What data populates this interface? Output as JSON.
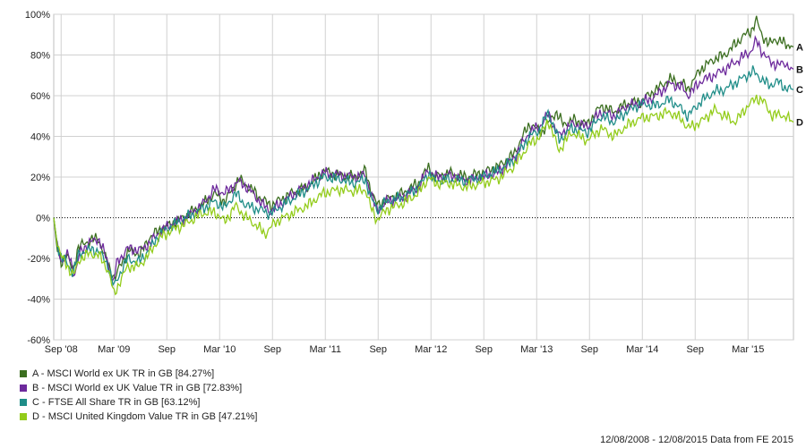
{
  "chart_data": {
    "type": "line",
    "x_ticks": [
      "Sep '08",
      "Mar '09",
      "Sep",
      "Mar '10",
      "Sep",
      "Mar '11",
      "Sep",
      "Mar '12",
      "Sep",
      "Mar '13",
      "Sep",
      "Mar '14",
      "Sep",
      "Mar '15"
    ],
    "y_ticks": [
      "100%",
      "80%",
      "60%",
      "40%",
      "20%",
      "0%",
      "-20%",
      "-40%",
      "-60%"
    ],
    "ylim": [
      -60,
      100
    ],
    "x_range": [
      "2008-08-12",
      "2015-08-12"
    ],
    "grid": true,
    "series": [
      {
        "name": "A - MSCI World ex UK TR in GB [84.27%]",
        "end_label": "A",
        "color": "#3b6e1f",
        "points": [
          [
            0,
            0
          ],
          [
            0.03,
            -15
          ],
          [
            0.07,
            -22
          ],
          [
            0.12,
            -18
          ],
          [
            0.18,
            -26
          ],
          [
            0.23,
            -15
          ],
          [
            0.3,
            -12
          ],
          [
            0.42,
            -10
          ],
          [
            0.52,
            -24
          ],
          [
            0.58,
            -30
          ],
          [
            0.64,
            -22
          ],
          [
            0.72,
            -16
          ],
          [
            0.82,
            -18
          ],
          [
            0.9,
            -10
          ],
          [
            1.0,
            -6
          ],
          [
            1.12,
            -3
          ],
          [
            1.25,
            1
          ],
          [
            1.4,
            6
          ],
          [
            1.52,
            12
          ],
          [
            1.62,
            8
          ],
          [
            1.75,
            19
          ],
          [
            1.85,
            15
          ],
          [
            1.95,
            10
          ],
          [
            2.05,
            6
          ],
          [
            2.25,
            12
          ],
          [
            2.4,
            15
          ],
          [
            2.55,
            23
          ],
          [
            2.7,
            21
          ],
          [
            2.85,
            20
          ],
          [
            2.95,
            23
          ],
          [
            3.0,
            14
          ],
          [
            3.06,
            6
          ],
          [
            3.15,
            9
          ],
          [
            3.3,
            12
          ],
          [
            3.45,
            17
          ],
          [
            3.55,
            25
          ],
          [
            3.6,
            20
          ],
          [
            3.75,
            22
          ],
          [
            3.9,
            20
          ],
          [
            4.05,
            22
          ],
          [
            4.2,
            25
          ],
          [
            4.35,
            31
          ],
          [
            4.5,
            46
          ],
          [
            4.62,
            42
          ],
          [
            4.75,
            52
          ],
          [
            4.82,
            46
          ],
          [
            4.92,
            48
          ],
          [
            5.05,
            46
          ],
          [
            5.18,
            55
          ],
          [
            5.3,
            52
          ],
          [
            5.42,
            56
          ],
          [
            5.55,
            57
          ],
          [
            5.7,
            63
          ],
          [
            5.83,
            68
          ],
          [
            5.95,
            66
          ],
          [
            6.0,
            63
          ],
          [
            6.12,
            73
          ],
          [
            6.25,
            78
          ],
          [
            6.35,
            80
          ],
          [
            6.52,
            89
          ],
          [
            6.6,
            92
          ],
          [
            6.65,
            97
          ],
          [
            6.7,
            90
          ],
          [
            6.77,
            85
          ],
          [
            6.82,
            88
          ],
          [
            6.9,
            86
          ],
          [
            7.0,
            84
          ]
        ]
      },
      {
        "name": "B - MSCI World ex UK Value TR in GB [72.83%]",
        "end_label": "B",
        "color": "#6d2a9c",
        "points": [
          [
            0,
            0
          ],
          [
            0.03,
            -13
          ],
          [
            0.08,
            -22
          ],
          [
            0.14,
            -18
          ],
          [
            0.2,
            -28
          ],
          [
            0.25,
            -17
          ],
          [
            0.32,
            -13
          ],
          [
            0.42,
            -10
          ],
          [
            0.5,
            -20
          ],
          [
            0.56,
            -32
          ],
          [
            0.6,
            -22
          ],
          [
            0.7,
            -15
          ],
          [
            0.82,
            -16
          ],
          [
            0.92,
            -12
          ],
          [
            1.0,
            -7
          ],
          [
            1.12,
            -3
          ],
          [
            1.25,
            0
          ],
          [
            1.4,
            6
          ],
          [
            1.52,
            14
          ],
          [
            1.62,
            12
          ],
          [
            1.75,
            18
          ],
          [
            1.85,
            14
          ],
          [
            1.95,
            8
          ],
          [
            2.05,
            3
          ],
          [
            2.25,
            11
          ],
          [
            2.4,
            16
          ],
          [
            2.55,
            22
          ],
          [
            2.7,
            21
          ],
          [
            2.85,
            20
          ],
          [
            2.95,
            21
          ],
          [
            3.0,
            12
          ],
          [
            3.06,
            3
          ],
          [
            3.15,
            8
          ],
          [
            3.3,
            10
          ],
          [
            3.45,
            15
          ],
          [
            3.55,
            24
          ],
          [
            3.6,
            20
          ],
          [
            3.75,
            21
          ],
          [
            3.9,
            18
          ],
          [
            4.05,
            20
          ],
          [
            4.2,
            22
          ],
          [
            4.35,
            29
          ],
          [
            4.5,
            42
          ],
          [
            4.6,
            45
          ],
          [
            4.68,
            51
          ],
          [
            4.78,
            40
          ],
          [
            4.9,
            46
          ],
          [
            5.05,
            45
          ],
          [
            5.18,
            52
          ],
          [
            5.3,
            50
          ],
          [
            5.42,
            55
          ],
          [
            5.55,
            56
          ],
          [
            5.7,
            60
          ],
          [
            5.83,
            66
          ],
          [
            5.95,
            64
          ],
          [
            6.0,
            60
          ],
          [
            6.12,
            67
          ],
          [
            6.25,
            70
          ],
          [
            6.35,
            73
          ],
          [
            6.52,
            79
          ],
          [
            6.6,
            82
          ],
          [
            6.65,
            87
          ],
          [
            6.7,
            82
          ],
          [
            6.77,
            77
          ],
          [
            6.85,
            75
          ],
          [
            6.92,
            76
          ],
          [
            7.0,
            73
          ]
        ]
      },
      {
        "name": "C - FTSE All Share TR in GB [63.12%]",
        "end_label": "C",
        "color": "#1f8d88",
        "points": [
          [
            0,
            0
          ],
          [
            0.03,
            -12
          ],
          [
            0.07,
            -19
          ],
          [
            0.12,
            -22
          ],
          [
            0.18,
            -27
          ],
          [
            0.24,
            -18
          ],
          [
            0.3,
            -16
          ],
          [
            0.42,
            -16
          ],
          [
            0.52,
            -24
          ],
          [
            0.57,
            -34
          ],
          [
            0.62,
            -28
          ],
          [
            0.7,
            -20
          ],
          [
            0.8,
            -22
          ],
          [
            0.9,
            -16
          ],
          [
            1.0,
            -8
          ],
          [
            1.12,
            -4
          ],
          [
            1.25,
            0
          ],
          [
            1.4,
            4
          ],
          [
            1.52,
            8
          ],
          [
            1.62,
            5
          ],
          [
            1.72,
            12
          ],
          [
            1.82,
            6
          ],
          [
            1.95,
            4
          ],
          [
            2.05,
            2
          ],
          [
            2.25,
            9
          ],
          [
            2.4,
            14
          ],
          [
            2.55,
            20
          ],
          [
            2.7,
            19
          ],
          [
            2.85,
            17
          ],
          [
            2.95,
            19
          ],
          [
            3.0,
            10
          ],
          [
            3.06,
            4
          ],
          [
            3.15,
            8
          ],
          [
            3.3,
            10
          ],
          [
            3.45,
            15
          ],
          [
            3.55,
            22
          ],
          [
            3.6,
            18
          ],
          [
            3.75,
            19
          ],
          [
            3.9,
            18
          ],
          [
            4.05,
            20
          ],
          [
            4.2,
            23
          ],
          [
            4.35,
            28
          ],
          [
            4.5,
            40
          ],
          [
            4.6,
            43
          ],
          [
            4.68,
            52
          ],
          [
            4.78,
            38
          ],
          [
            4.9,
            44
          ],
          [
            5.05,
            42
          ],
          [
            5.18,
            50
          ],
          [
            5.3,
            47
          ],
          [
            5.42,
            52
          ],
          [
            5.55,
            56
          ],
          [
            5.7,
            55
          ],
          [
            5.83,
            58
          ],
          [
            5.95,
            53
          ],
          [
            6.0,
            50
          ],
          [
            6.12,
            57
          ],
          [
            6.25,
            62
          ],
          [
            6.35,
            63
          ],
          [
            6.5,
            68
          ],
          [
            6.62,
            72
          ],
          [
            6.7,
            68
          ],
          [
            6.77,
            65
          ],
          [
            6.85,
            67
          ],
          [
            6.92,
            64
          ],
          [
            7.0,
            63
          ]
        ]
      },
      {
        "name": "D - MSCI United Kingdom Value TR in GB [47.21%]",
        "end_label": "D",
        "color": "#93cc1a",
        "points": [
          [
            0,
            0
          ],
          [
            0.03,
            -12
          ],
          [
            0.08,
            -20
          ],
          [
            0.13,
            -24
          ],
          [
            0.19,
            -28
          ],
          [
            0.25,
            -20
          ],
          [
            0.32,
            -18
          ],
          [
            0.42,
            -18
          ],
          [
            0.52,
            -26
          ],
          [
            0.57,
            -38
          ],
          [
            0.62,
            -32
          ],
          [
            0.7,
            -24
          ],
          [
            0.8,
            -24
          ],
          [
            0.9,
            -18
          ],
          [
            1.0,
            -10
          ],
          [
            1.12,
            -6
          ],
          [
            1.25,
            -3
          ],
          [
            1.4,
            2
          ],
          [
            1.52,
            3
          ],
          [
            1.62,
            -2
          ],
          [
            1.72,
            6
          ],
          [
            1.82,
            0
          ],
          [
            1.9,
            -3
          ],
          [
            2.0,
            -8
          ],
          [
            2.1,
            -2
          ],
          [
            2.25,
            2
          ],
          [
            2.4,
            6
          ],
          [
            2.55,
            12
          ],
          [
            2.7,
            14
          ],
          [
            2.85,
            13
          ],
          [
            2.95,
            14
          ],
          [
            3.0,
            5
          ],
          [
            3.06,
            -1
          ],
          [
            3.15,
            4
          ],
          [
            3.3,
            7
          ],
          [
            3.45,
            12
          ],
          [
            3.55,
            20
          ],
          [
            3.6,
            17
          ],
          [
            3.75,
            17
          ],
          [
            3.9,
            15
          ],
          [
            4.05,
            17
          ],
          [
            4.2,
            19
          ],
          [
            4.35,
            25
          ],
          [
            4.5,
            36
          ],
          [
            4.6,
            40
          ],
          [
            4.68,
            48
          ],
          [
            4.78,
            33
          ],
          [
            4.9,
            42
          ],
          [
            5.05,
            38
          ],
          [
            5.18,
            44
          ],
          [
            5.3,
            40
          ],
          [
            5.42,
            45
          ],
          [
            5.55,
            49
          ],
          [
            5.7,
            50
          ],
          [
            5.83,
            52
          ],
          [
            5.95,
            48
          ],
          [
            6.0,
            44
          ],
          [
            6.12,
            47
          ],
          [
            6.25,
            53
          ],
          [
            6.35,
            50
          ],
          [
            6.45,
            47
          ],
          [
            6.55,
            54
          ],
          [
            6.65,
            59
          ],
          [
            6.72,
            57
          ],
          [
            6.8,
            50
          ],
          [
            6.88,
            51
          ],
          [
            7.0,
            47
          ]
        ]
      }
    ]
  },
  "footer": "12/08/2008 - 12/08/2015 Data from FE 2015"
}
